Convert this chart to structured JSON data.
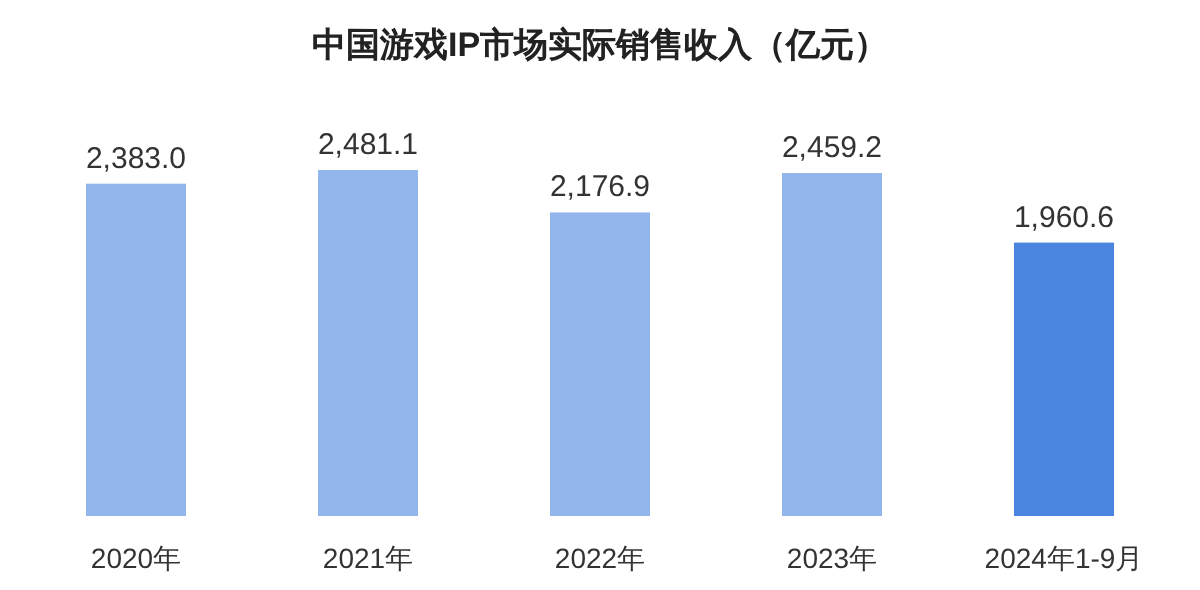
{
  "chart_data": {
    "type": "bar",
    "title": "中国游戏IP市场实际销售收入（亿元）",
    "categories": [
      "2020年",
      "2021年",
      "2022年",
      "2023年",
      "2024年1-9月"
    ],
    "values": [
      2383.0,
      2481.1,
      2176.9,
      2459.2,
      1960.6
    ],
    "colors": [
      "#92b5ec",
      "#92b5ec",
      "#92b5ec",
      "#92b5ec",
      "#4a86df"
    ],
    "value_labels": [
      "2,383.0",
      "2,481.1",
      "2,176.9",
      "2,459.2",
      "1,960.6"
    ]
  }
}
